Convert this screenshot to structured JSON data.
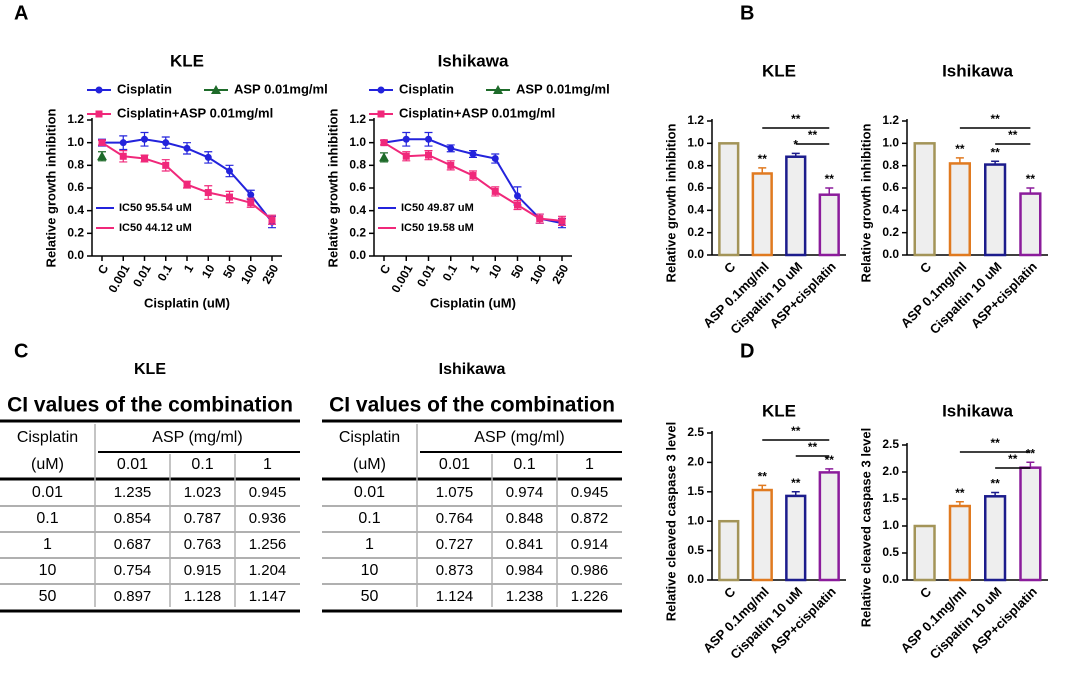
{
  "panel_labels": [
    "A",
    "B",
    "C",
    "D"
  ],
  "chart_data": [
    {
      "type": "line",
      "title": "KLE",
      "xlabel": "Cisplatin (uM)",
      "ylabel": "Relative growth inhibition",
      "categories": [
        "C",
        "0.001",
        "0.01",
        "0.1",
        "1",
        "10",
        "50",
        "100",
        "250"
      ],
      "ylim": [
        0,
        1.2
      ],
      "yticks": [
        {
          "value": 0,
          "label": "0.0"
        },
        0.2,
        0.4,
        0.6,
        0.8,
        {
          "value": 1,
          "label": "1.0"
        },
        1.2
      ],
      "series": [
        {
          "name": "Cisplatin",
          "color": "#2323dc",
          "marker": "circle",
          "values": [
            1.0,
            1.0,
            1.03,
            1.0,
            0.95,
            0.87,
            0.75,
            0.54,
            0.3
          ],
          "errors": [
            0.03,
            0.06,
            0.06,
            0.05,
            0.05,
            0.05,
            0.05,
            0.04,
            0.05
          ]
        },
        {
          "name": "ASP 0.01mg/ml",
          "color": "#1e6b2a",
          "marker": "triangle",
          "values": [
            0.88,
            null,
            null,
            null,
            null,
            null,
            null,
            null,
            null
          ],
          "errors": [
            0.04,
            null,
            null,
            null,
            null,
            null,
            null,
            null,
            null
          ]
        },
        {
          "name": "Cisplatin+ASP 0.01mg/ml",
          "color": "#f0287a",
          "marker": "square",
          "values": [
            1.0,
            0.88,
            0.86,
            0.8,
            0.63,
            0.56,
            0.52,
            0.47,
            0.32
          ],
          "errors": [
            0.02,
            0.05,
            0.03,
            0.05,
            0.03,
            0.06,
            0.05,
            0.04,
            0.04
          ]
        }
      ],
      "annotations": [
        {
          "text": "IC50 95.54 uM",
          "color": "#2323dc"
        },
        {
          "text": "IC50 44.12 uM",
          "color": "#f0287a"
        }
      ]
    },
    {
      "type": "line",
      "title": "Ishikawa",
      "xlabel": "Cisplatin (uM)",
      "ylabel": "Relative growth inhibition",
      "categories": [
        "C",
        "0.001",
        "0.01",
        "0.1",
        "1",
        "10",
        "50",
        "100",
        "250"
      ],
      "ylim": [
        0,
        1.2
      ],
      "yticks": [
        {
          "value": 0,
          "label": "0.0"
        },
        0.2,
        0.4,
        0.6,
        0.8,
        {
          "value": 1,
          "label": "1.0"
        },
        1.2
      ],
      "series": [
        {
          "name": "Cisplatin",
          "color": "#2323dc",
          "marker": "circle",
          "values": [
            1.0,
            1.03,
            1.03,
            0.95,
            0.9,
            0.86,
            0.53,
            0.33,
            0.29
          ],
          "errors": [
            0.02,
            0.06,
            0.06,
            0.03,
            0.03,
            0.04,
            0.08,
            0.04,
            0.04
          ]
        },
        {
          "name": "ASP 0.01mg/ml",
          "color": "#1e6b2a",
          "marker": "triangle",
          "values": [
            0.87,
            null,
            null,
            null,
            null,
            null,
            null,
            null,
            null
          ],
          "errors": [
            0.04,
            null,
            null,
            null,
            null,
            null,
            null,
            null,
            null
          ]
        },
        {
          "name": "Cisplatin+ASP 0.01mg/ml",
          "color": "#f0287a",
          "marker": "square",
          "values": [
            1.0,
            0.88,
            0.89,
            0.8,
            0.71,
            0.57,
            0.45,
            0.33,
            0.31
          ],
          "errors": [
            0.02,
            0.04,
            0.04,
            0.04,
            0.04,
            0.04,
            0.04,
            0.04,
            0.04
          ]
        }
      ],
      "annotations": [
        {
          "text": "IC50 49.87 uM",
          "color": "#2323dc"
        },
        {
          "text": "IC50 19.58 uM",
          "color": "#f0287a"
        }
      ]
    },
    {
      "type": "bar",
      "title": "KLE",
      "ylabel": "Relative growth inhibition",
      "categories": [
        "C",
        "ASP 0.1mg/ml",
        "Cispaltin 10 uM",
        "ASP+cisplatin"
      ],
      "values": [
        1.0,
        0.73,
        0.88,
        0.54
      ],
      "errors": [
        0,
        0.05,
        0.03,
        0.06
      ],
      "colors": [
        "#a39458",
        "#e07a20",
        "#1c1c8c",
        "#8b1c9b"
      ],
      "star_labels": [
        null,
        "**",
        "*",
        "**"
      ],
      "brackets": [
        {
          "categories": [
            "ASP 0.1mg/ml",
            "ASP+cisplatin"
          ],
          "label": "**"
        },
        {
          "categories": [
            "Cispaltin 10 uM",
            "ASP+cisplatin"
          ],
          "label": "**"
        }
      ],
      "ylim": [
        0,
        1.2
      ],
      "yticks": [
        {
          "value": 0,
          "label": "0.0"
        },
        0.2,
        0.4,
        0.6,
        0.8,
        {
          "value": 1,
          "label": "1.0"
        },
        1.2
      ]
    },
    {
      "type": "bar",
      "title": "Ishikawa",
      "ylabel": "Relative growth inhibition",
      "categories": [
        "C",
        "ASP 0.1mg/ml",
        "Cispaltin 10 uM",
        "ASP+cisplatin"
      ],
      "values": [
        1.0,
        0.82,
        0.81,
        0.55
      ],
      "errors": [
        0,
        0.05,
        0.03,
        0.05
      ],
      "colors": [
        "#a39458",
        "#e07a20",
        "#1c1c8c",
        "#8b1c9b"
      ],
      "star_labels": [
        null,
        "**",
        "**",
        "**"
      ],
      "brackets": [
        {
          "categories": [
            "ASP 0.1mg/ml",
            "ASP+cisplatin"
          ],
          "label": "**"
        },
        {
          "categories": [
            "Cispaltin 10 uM",
            "ASP+cisplatin"
          ],
          "label": "**"
        }
      ],
      "ylim": [
        0,
        1.2
      ],
      "yticks": [
        {
          "value": 0,
          "label": "0.0"
        },
        0.2,
        0.4,
        0.6,
        0.8,
        {
          "value": 1,
          "label": "1.0"
        },
        1.2
      ]
    },
    {
      "type": "bar",
      "title": "KLE",
      "ylabel": "Relative cleaved caspase 3 level",
      "categories": [
        "C",
        "ASP 0.1mg/ml",
        "Cispaltin 10 uM",
        "ASP+cisplatin"
      ],
      "values": [
        1.0,
        1.53,
        1.43,
        1.83
      ],
      "errors": [
        0,
        0.08,
        0.07,
        0.06
      ],
      "colors": [
        "#a39458",
        "#e07a20",
        "#1c1c8c",
        "#8b1c9b"
      ],
      "star_labels": [
        null,
        "**",
        "**",
        "**"
      ],
      "brackets": [
        {
          "categories": [
            "ASP 0.1mg/ml",
            "ASP+cisplatin"
          ],
          "label": "**"
        },
        {
          "categories": [
            "Cispaltin 10 uM",
            "ASP+cisplatin"
          ],
          "label": "**"
        }
      ],
      "ylim": [
        0,
        2.5
      ],
      "yticks": [
        {
          "value": 0,
          "label": "0.0"
        },
        0.5,
        {
          "value": 1,
          "label": "1.0"
        },
        1.5,
        {
          "value": 2,
          "label": "2.0"
        },
        2.5
      ]
    },
    {
      "type": "bar",
      "title": "Ishikawa",
      "ylabel": "Relative cleaved caspase 3 level",
      "categories": [
        "C",
        "ASP 0.1mg/ml",
        "Cispaltin 10 uM",
        "ASP+cisplatin"
      ],
      "values": [
        1.0,
        1.37,
        1.55,
        2.08
      ],
      "errors": [
        0,
        0.08,
        0.07,
        0.1
      ],
      "colors": [
        "#a39458",
        "#e07a20",
        "#1c1c8c",
        "#8b1c9b"
      ],
      "star_labels": [
        null,
        "**",
        "**",
        "**"
      ],
      "brackets": [
        {
          "categories": [
            "ASP 0.1mg/ml",
            "ASP+cisplatin"
          ],
          "label": "**"
        },
        {
          "categories": [
            "Cispaltin 10 uM",
            "ASP+cisplatin"
          ],
          "label": "**"
        }
      ],
      "ylim": [
        0,
        2.5
      ],
      "yticks": [
        {
          "value": 0,
          "label": "0.0"
        },
        0.5,
        {
          "value": 1,
          "label": "1.0"
        },
        1.5,
        {
          "value": 2,
          "label": "2.0"
        },
        2.5
      ]
    }
  ],
  "tables": [
    {
      "title": "KLE",
      "caption": "CI values of the combination",
      "header": [
        "Cisplatin",
        "ASP (mg/ml)"
      ],
      "subheader": [
        "(uM)",
        "0.01",
        "0.1",
        "1"
      ],
      "rows": [
        [
          "0.01",
          "1.235",
          "1.023",
          "0.945"
        ],
        [
          "0.1",
          "0.854",
          "0.787",
          "0.936"
        ],
        [
          "1",
          "0.687",
          "0.763",
          "1.256"
        ],
        [
          "10",
          "0.754",
          "0.915",
          "1.204"
        ],
        [
          "50",
          "0.897",
          "1.128",
          "1.147"
        ]
      ]
    },
    {
      "title": "Ishikawa",
      "caption": "CI values of the combination",
      "header": [
        "Cisplatin",
        "ASP (mg/ml)"
      ],
      "subheader": [
        "(uM)",
        "0.01",
        "0.1",
        "1"
      ],
      "rows": [
        [
          "0.01",
          "1.075",
          "0.974",
          "0.945"
        ],
        [
          "0.1",
          "0.764",
          "0.848",
          "0.872"
        ],
        [
          "1",
          "0.727",
          "0.841",
          "0.914"
        ],
        [
          "10",
          "0.873",
          "0.984",
          "0.986"
        ],
        [
          "50",
          "1.124",
          "1.238",
          "1.226"
        ]
      ]
    }
  ]
}
